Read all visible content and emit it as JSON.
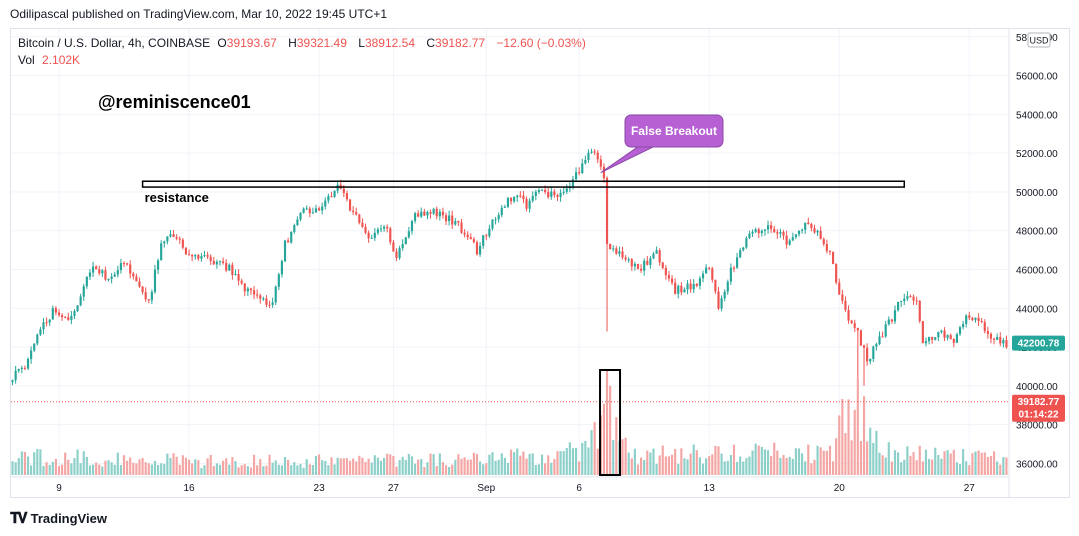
{
  "header": {
    "publisher": "Odilipascal published on TradingView.com, Mar 10, 2022 19:45 UTC+1"
  },
  "legend": {
    "symbol": "Bitcoin / U.S. Dollar, 4h, COINBASE",
    "open_label": "O",
    "open": "39193.67",
    "high_label": "H",
    "high": "39321.49",
    "low_label": "L",
    "low": "38912.54",
    "close_label": "C",
    "close": "39182.77",
    "change": "−12.60 (−0.03%)",
    "vol_label": "Vol",
    "vol": "2.102K"
  },
  "footer": {
    "logo_text": "TradingView"
  },
  "colors": {
    "up": "#26a69a",
    "down": "#ef5350",
    "vol_up": "#8cd0c9",
    "vol_down": "#f4a6a4",
    "callout_fill": "#b760d4",
    "callout_border": "#8a4aa6",
    "price_badge": "#26a69a",
    "last_badge": "#ef5350"
  },
  "chart_data": {
    "type": "candlestick",
    "title": "Bitcoin / U.S. Dollar, 4h, COINBASE",
    "currency": "USD",
    "y_ticks": [
      36000,
      38000,
      40000,
      42000,
      44000,
      46000,
      48000,
      50000,
      52000,
      54000,
      56000,
      58000
    ],
    "y_tick_labels": [
      "36000.00",
      "38000.00",
      "40000.00",
      "42000.00",
      "44000.00",
      "46000.00",
      "48000.00",
      "50000.00",
      "52000.00",
      "54000.00",
      "56000.00",
      "58000.00"
    ],
    "ylim": [
      35300,
      58400
    ],
    "x_ticks": [
      {
        "label": "9",
        "index": 15
      },
      {
        "label": "16",
        "index": 57
      },
      {
        "label": "23",
        "index": 99
      },
      {
        "label": "27",
        "index": 123
      },
      {
        "label": "Sep",
        "index": 153
      },
      {
        "label": "6",
        "index": 183
      },
      {
        "label": "13",
        "index": 225
      },
      {
        "label": "20",
        "index": 267
      },
      {
        "label": "27",
        "index": 309
      }
    ],
    "candle_count": 322,
    "anchors": [
      [
        0,
        40500
      ],
      [
        4,
        41000
      ],
      [
        8,
        42800
      ],
      [
        14,
        44000
      ],
      [
        18,
        43200
      ],
      [
        26,
        46200
      ],
      [
        30,
        45600
      ],
      [
        36,
        46300
      ],
      [
        40,
        45300
      ],
      [
        44,
        44200
      ],
      [
        48,
        47500
      ],
      [
        52,
        47800
      ],
      [
        58,
        46600
      ],
      [
        64,
        46500
      ],
      [
        70,
        46100
      ],
      [
        75,
        45000
      ],
      [
        80,
        44600
      ],
      [
        84,
        44200
      ],
      [
        88,
        47300
      ],
      [
        94,
        49000
      ],
      [
        100,
        49300
      ],
      [
        105,
        50200
      ],
      [
        108,
        49500
      ],
      [
        115,
        47700
      ],
      [
        120,
        48400
      ],
      [
        124,
        46600
      ],
      [
        130,
        48800
      ],
      [
        136,
        49000
      ],
      [
        144,
        48300
      ],
      [
        150,
        47000
      ],
      [
        155,
        48500
      ],
      [
        160,
        49600
      ],
      [
        163,
        50000
      ],
      [
        166,
        49300
      ],
      [
        170,
        50100
      ],
      [
        176,
        49800
      ],
      [
        181,
        50600
      ],
      [
        186,
        51800
      ],
      [
        188,
        52200
      ],
      [
        190,
        51400
      ],
      [
        191,
        50800
      ],
      [
        192,
        47300
      ],
      [
        196,
        46800
      ],
      [
        202,
        46000
      ],
      [
        208,
        46800
      ],
      [
        214,
        44900
      ],
      [
        220,
        45200
      ],
      [
        225,
        46100
      ],
      [
        228,
        44100
      ],
      [
        232,
        46000
      ],
      [
        238,
        47800
      ],
      [
        244,
        48200
      ],
      [
        250,
        47500
      ],
      [
        256,
        48400
      ],
      [
        260,
        47900
      ],
      [
        264,
        46800
      ],
      [
        267,
        44800
      ],
      [
        270,
        43200
      ],
      [
        273,
        42700
      ],
      [
        276,
        41300
      ],
      [
        280,
        42500
      ],
      [
        284,
        43500
      ],
      [
        288,
        44700
      ],
      [
        292,
        44300
      ],
      [
        294,
        42200
      ],
      [
        300,
        42800
      ],
      [
        304,
        42100
      ],
      [
        308,
        43600
      ],
      [
        312,
        43400
      ],
      [
        316,
        42500
      ],
      [
        321,
        42100
      ]
    ],
    "volume_anchors": [
      [
        0,
        0.25
      ],
      [
        60,
        0.18
      ],
      [
        150,
        0.2
      ],
      [
        186,
        0.3
      ],
      [
        192,
        1.0
      ],
      [
        196,
        0.5
      ],
      [
        200,
        0.25
      ],
      [
        265,
        0.3
      ],
      [
        270,
        0.9
      ],
      [
        275,
        0.8
      ],
      [
        280,
        0.3
      ],
      [
        321,
        0.2
      ]
    ],
    "last_price": 39182.77,
    "current_price": 42200.78,
    "price_badge_label": "42200.78",
    "last_badge_label": "39182.77",
    "countdown_label": "01:14:22"
  },
  "annotations": {
    "watermark": "@reminiscence01",
    "resistance_label": "resistance",
    "resistance_low": 50250,
    "resistance_high": 50550,
    "callout": "False Breakout",
    "callout_tail_price": 51000,
    "callout_tail_index": 190,
    "breakout_volume_index": 192
  }
}
